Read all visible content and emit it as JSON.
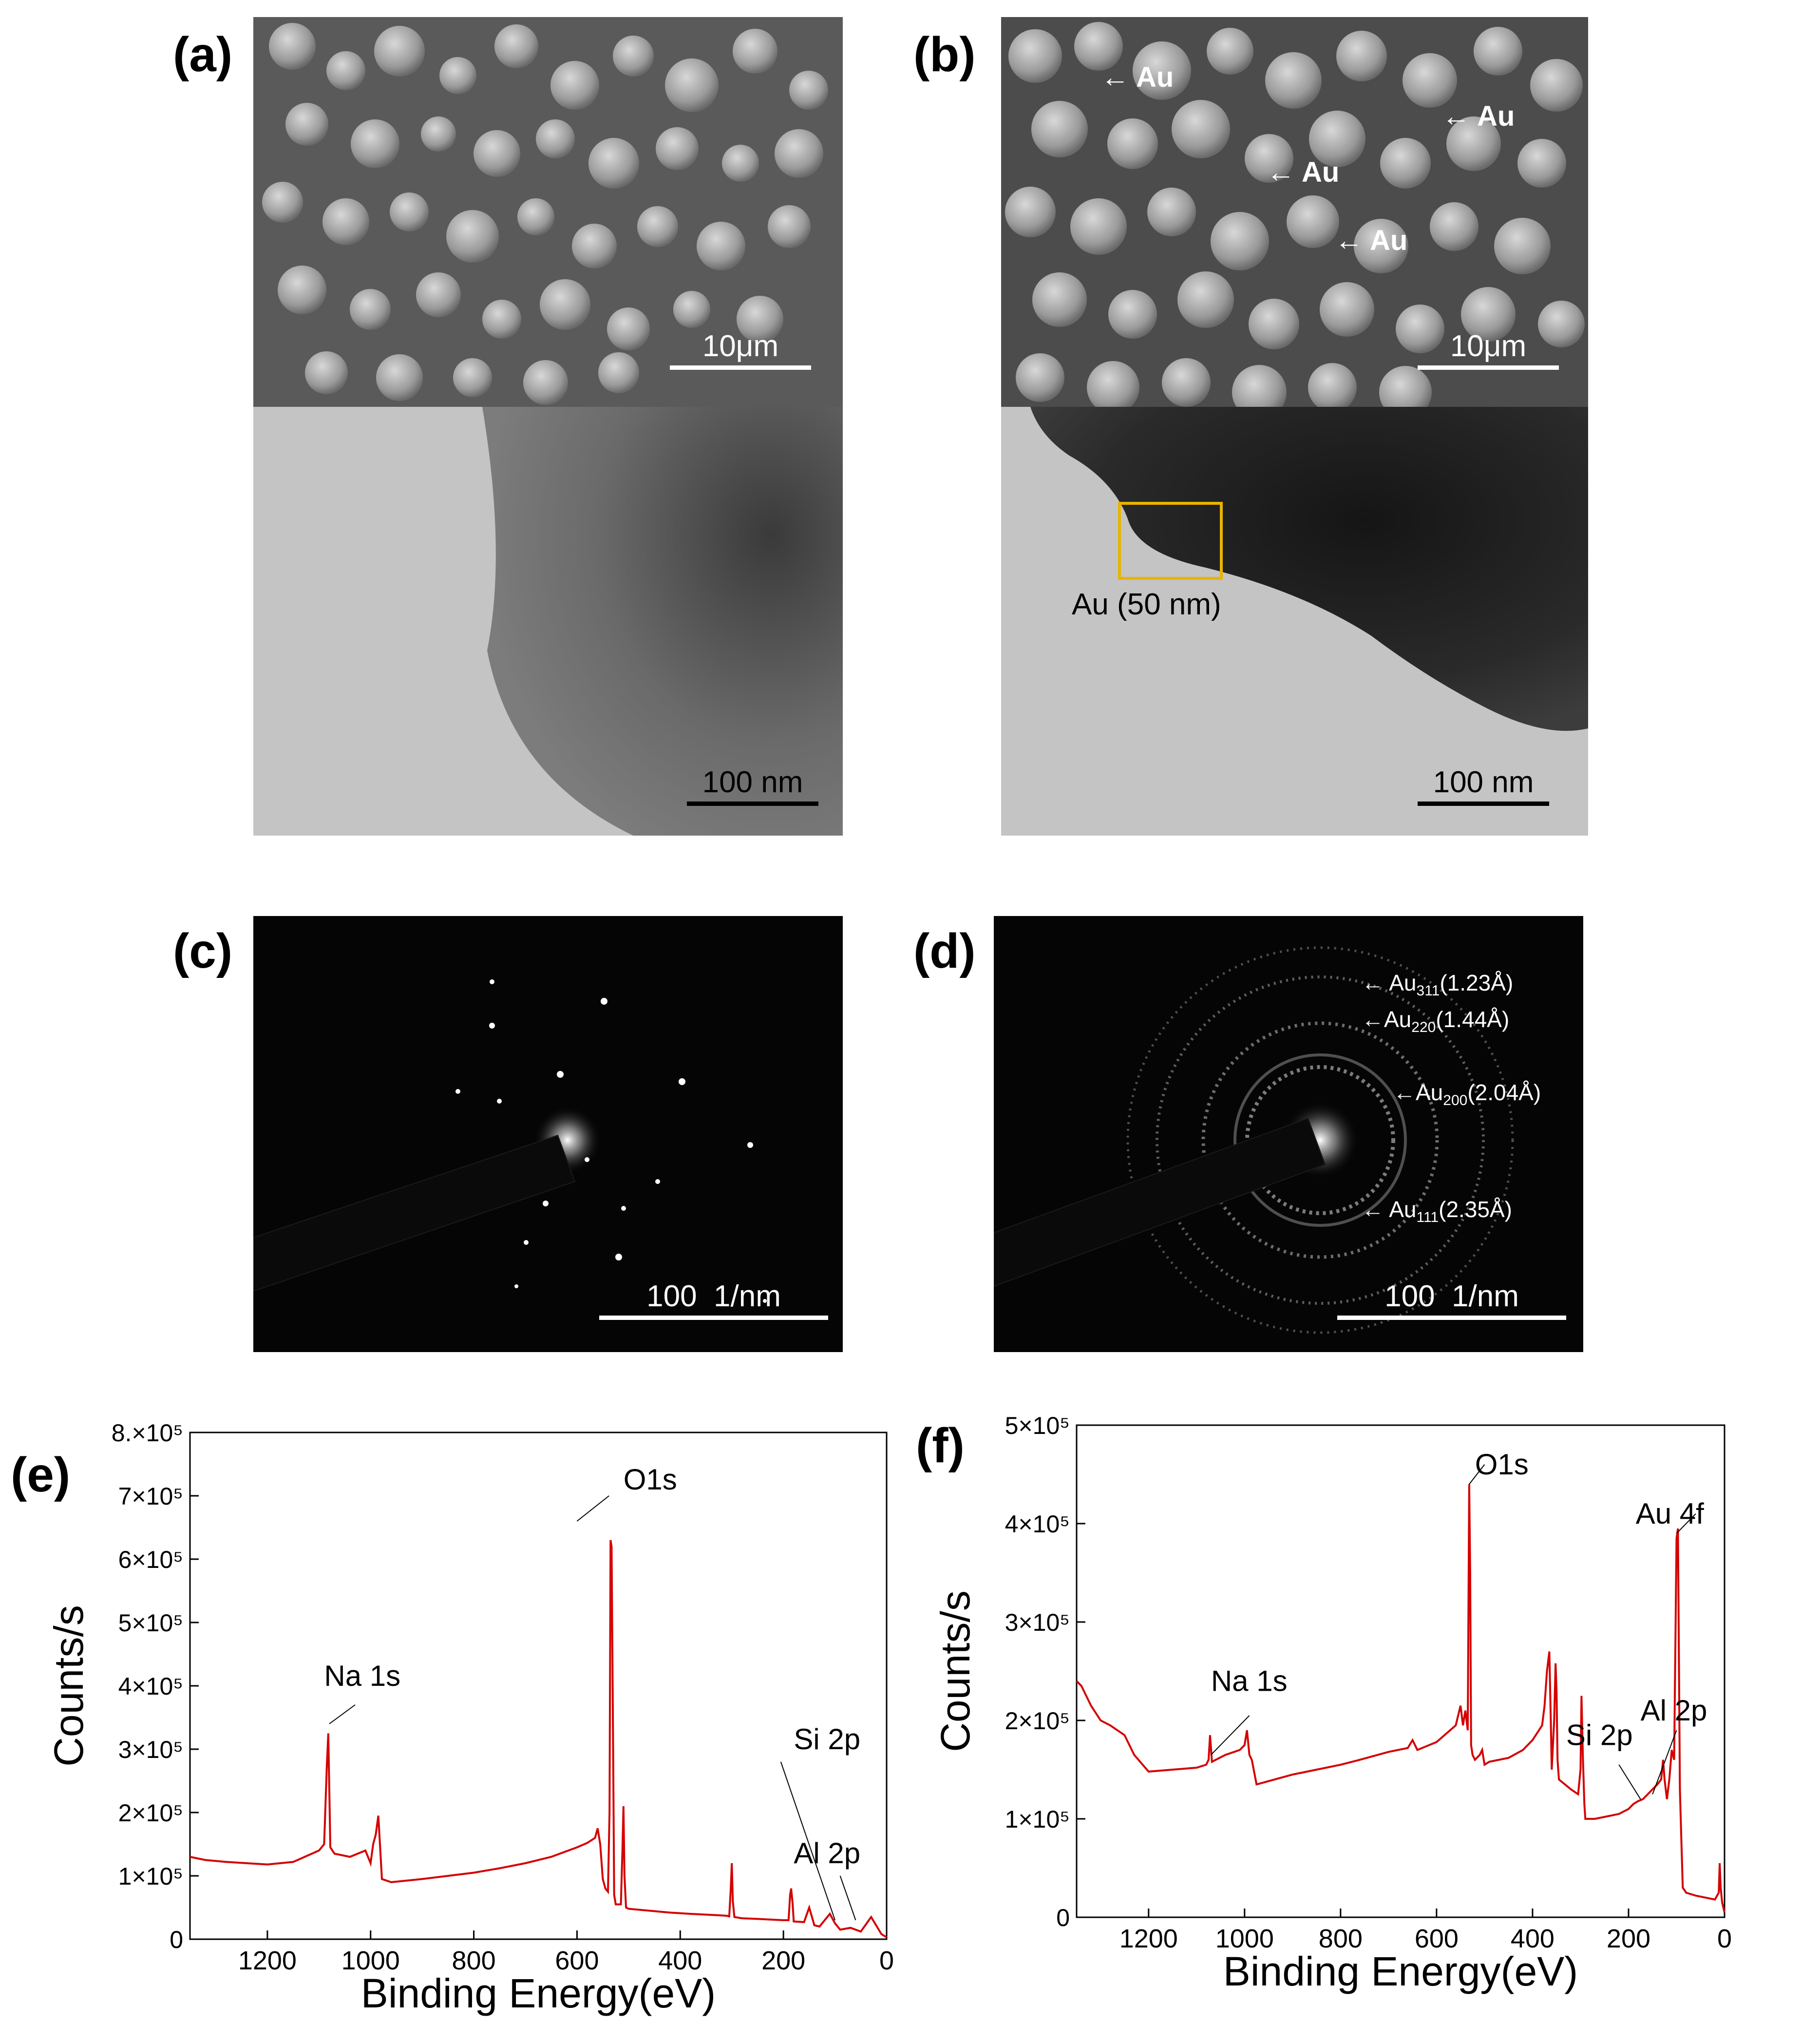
{
  "panel_labels": [
    "(a)",
    "(b)",
    "(c)",
    "(d)",
    "(e)",
    "(f)"
  ],
  "panel_a": {
    "sem_scale": "10μm",
    "tem_scale": "100 nm"
  },
  "panel_b": {
    "sem_scale": "10μm",
    "tem_scale": "100 nm",
    "arrows": [
      "Au",
      "Au",
      "Au",
      "Au"
    ],
    "box_label": "Au (50 nm)"
  },
  "panel_c": {
    "scale": "100  1/nm"
  },
  "panel_d": {
    "scale": "100  1/nm",
    "rings": [
      {
        "base": "Au",
        "sub": "311",
        "value": "(1.23Å)"
      },
      {
        "base": "Au",
        "sub": "220",
        "value": "(1.44Å)"
      },
      {
        "base": "Au",
        "sub": "200",
        "value": "(2.04Å)"
      },
      {
        "base": "Au",
        "sub": "111",
        "value": "(2.35Å)"
      }
    ]
  },
  "chart_data": [
    {
      "type": "line",
      "panel": "(e)",
      "xlabel": "Binding Energy(eV)",
      "ylabel": "Counts/s",
      "xlim": [
        1350,
        0
      ],
      "ylim": [
        0,
        800000
      ],
      "x_ticks": [
        "1200",
        "1000",
        "800",
        "600",
        "400",
        "200",
        "0"
      ],
      "y_ticks": [
        "0",
        "1×10⁵",
        "2×10⁵",
        "3×10⁵",
        "4×10⁵",
        "5×10⁵",
        "6×10⁵",
        "7×10⁵",
        "8.×10⁵"
      ],
      "color": "#d40000",
      "series": [
        {
          "x": [
            1350,
            1320,
            1280,
            1240,
            1200,
            1150,
            1100,
            1090,
            1085,
            1082,
            1078,
            1070,
            1040,
            1010,
            1000,
            995,
            990,
            985,
            978,
            960,
            900,
            850,
            800,
            750,
            700,
            650,
            600,
            580,
            565,
            560,
            555,
            550,
            545,
            540,
            537,
            535,
            533,
            530,
            528,
            525,
            515,
            512,
            510,
            508,
            505,
            500,
            460,
            420,
            380,
            330,
            310,
            305,
            302,
            300,
            298,
            295,
            280,
            250,
            200,
            190,
            187,
            185,
            182,
            180,
            160,
            150,
            140,
            130,
            110,
            100,
            90,
            70,
            50,
            30,
            10,
            0
          ],
          "y": [
            130000,
            125000,
            122000,
            120000,
            118000,
            122000,
            140000,
            150000,
            270000,
            325000,
            145000,
            135000,
            130000,
            140000,
            120000,
            150000,
            165000,
            195000,
            95000,
            90000,
            95000,
            100000,
            105000,
            112000,
            120000,
            130000,
            145000,
            152000,
            160000,
            175000,
            150000,
            95000,
            80000,
            75000,
            200000,
            630000,
            620000,
            300000,
            70000,
            55000,
            55000,
            140000,
            210000,
            100000,
            50000,
            48000,
            45000,
            42000,
            40000,
            38000,
            37000,
            36000,
            80000,
            120000,
            60000,
            35000,
            33000,
            32000,
            30000,
            30000,
            70000,
            80000,
            55000,
            28000,
            27000,
            50000,
            22000,
            20000,
            40000,
            25000,
            15000,
            18000,
            12000,
            35000,
            8000,
            3000
          ]
        }
      ],
      "annotations": [
        "O1s",
        "Na 1s",
        "Si 2p",
        "Al 2p"
      ]
    },
    {
      "type": "line",
      "panel": "(f)",
      "xlabel": "Binding Energy(eV)",
      "ylabel": "Counts/s",
      "xlim": [
        1350,
        0
      ],
      "ylim": [
        0,
        500000
      ],
      "x_ticks": [
        "1200",
        "1000",
        "800",
        "600",
        "400",
        "200",
        "0"
      ],
      "y_ticks": [
        "0",
        "1×10⁵",
        "2×10⁵",
        "3×10⁵",
        "4×10⁵",
        "5×10⁵"
      ],
      "color": "#d40000",
      "series": [
        {
          "x": [
            1350,
            1340,
            1320,
            1300,
            1280,
            1250,
            1230,
            1200,
            1150,
            1100,
            1080,
            1075,
            1072,
            1068,
            1060,
            1040,
            1010,
            1000,
            995,
            990,
            985,
            975,
            960,
            900,
            850,
            800,
            760,
            700,
            660,
            650,
            640,
            600,
            560,
            550,
            545,
            540,
            535,
            532,
            530,
            528,
            525,
            520,
            510,
            505,
            500,
            490,
            450,
            420,
            400,
            380,
            375,
            370,
            365,
            362,
            360,
            358,
            355,
            352,
            350,
            348,
            345,
            340,
            320,
            305,
            300,
            298,
            295,
            292,
            290,
            270,
            250,
            220,
            200,
            190,
            180,
            170,
            160,
            150,
            140,
            132,
            130,
            128,
            125,
            120,
            115,
            110,
            105,
            100,
            97,
            93,
            90,
            87,
            84,
            80,
            60,
            40,
            20,
            12,
            10,
            8,
            5,
            0
          ],
          "y": [
            240000,
            235000,
            215000,
            200000,
            195000,
            185000,
            165000,
            148000,
            150000,
            152000,
            155000,
            160000,
            185000,
            158000,
            160000,
            165000,
            170000,
            175000,
            190000,
            165000,
            160000,
            135000,
            137000,
            145000,
            150000,
            155000,
            160000,
            168000,
            172000,
            180000,
            170000,
            178000,
            195000,
            215000,
            195000,
            210000,
            190000,
            440000,
            350000,
            175000,
            165000,
            160000,
            165000,
            170000,
            155000,
            158000,
            162000,
            170000,
            180000,
            195000,
            215000,
            250000,
            270000,
            200000,
            150000,
            170000,
            200000,
            258000,
            230000,
            160000,
            140000,
            138000,
            130000,
            125000,
            150000,
            225000,
            160000,
            115000,
            100000,
            100000,
            102000,
            105000,
            110000,
            115000,
            118000,
            120000,
            125000,
            130000,
            135000,
            140000,
            150000,
            160000,
            140000,
            120000,
            140000,
            170000,
            160000,
            385000,
            395000,
            130000,
            80000,
            30000,
            28000,
            25000,
            22000,
            20000,
            18000,
            25000,
            55000,
            30000,
            15000,
            5000
          ]
        }
      ],
      "annotations": [
        "O1s",
        "Au 4f",
        "Na 1s",
        "Al 2p",
        "Si 2p"
      ]
    }
  ]
}
